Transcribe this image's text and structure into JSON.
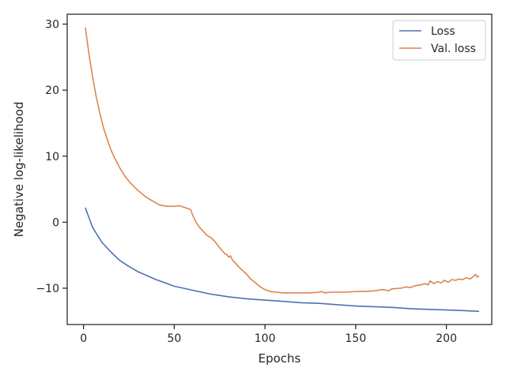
{
  "chart_data": {
    "type": "line",
    "title": "",
    "xlabel": "Epochs",
    "ylabel": "Negative log-likelihood",
    "xlim": [
      -9,
      225
    ],
    "ylim": [
      -15.5,
      31.5
    ],
    "xticks": [
      0,
      50,
      100,
      150,
      200
    ],
    "yticks": [
      -10,
      0,
      10,
      20,
      30
    ],
    "xtick_labels": [
      "0",
      "50",
      "100",
      "150",
      "200"
    ],
    "ytick_labels": [
      "−10",
      "0",
      "10",
      "20",
      "30"
    ],
    "grid": false,
    "legend_position": "top-right",
    "series": [
      {
        "name": "Loss",
        "color": "#4c72b0",
        "x": [
          1,
          5,
          10,
          15,
          20,
          25,
          30,
          35,
          40,
          45,
          50,
          55,
          60,
          65,
          70,
          75,
          80,
          90,
          100,
          110,
          120,
          130,
          140,
          150,
          160,
          170,
          180,
          190,
          200,
          210,
          218
        ],
        "y": [
          2.2,
          -0.8,
          -3.0,
          -4.5,
          -5.8,
          -6.7,
          -7.5,
          -8.1,
          -8.7,
          -9.2,
          -9.7,
          -10.0,
          -10.3,
          -10.6,
          -10.9,
          -11.1,
          -11.3,
          -11.6,
          -11.8,
          -12.0,
          -12.2,
          -12.3,
          -12.5,
          -12.7,
          -12.8,
          -12.9,
          -13.1,
          -13.2,
          -13.3,
          -13.4,
          -13.5
        ]
      },
      {
        "name": "Val. loss",
        "color": "#dd8452",
        "x": [
          1,
          3,
          5,
          7,
          9,
          11,
          13,
          15,
          17,
          20,
          23,
          26,
          30,
          34,
          38,
          42,
          46,
          50,
          53,
          55,
          57,
          59,
          60,
          62,
          64,
          66,
          68,
          70,
          72,
          74,
          76,
          78,
          79,
          80,
          81,
          82,
          84,
          86,
          88,
          90,
          92,
          94,
          96,
          98,
          100,
          103,
          106,
          110,
          115,
          120,
          125,
          130,
          131,
          133,
          136,
          140,
          145,
          150,
          155,
          160,
          165,
          168,
          170,
          175,
          178,
          180,
          183,
          186,
          188,
          190,
          191,
          193,
          195,
          197,
          199,
          201,
          203,
          205,
          207,
          209,
          211,
          213,
          215,
          216,
          217,
          218
        ],
        "y": [
          29.5,
          25.5,
          22.0,
          19.0,
          16.5,
          14.3,
          12.6,
          11.0,
          9.8,
          8.2,
          6.9,
          5.9,
          4.8,
          3.9,
          3.2,
          2.6,
          2.4,
          2.4,
          2.5,
          2.3,
          2.1,
          1.9,
          1.2,
          0.0,
          -0.8,
          -1.4,
          -2.0,
          -2.3,
          -2.8,
          -3.5,
          -4.2,
          -4.8,
          -4.9,
          -5.3,
          -5.1,
          -5.7,
          -6.3,
          -6.9,
          -7.4,
          -7.9,
          -8.6,
          -9.0,
          -9.5,
          -9.9,
          -10.2,
          -10.5,
          -10.6,
          -10.7,
          -10.7,
          -10.7,
          -10.7,
          -10.6,
          -10.5,
          -10.7,
          -10.6,
          -10.6,
          -10.6,
          -10.5,
          -10.5,
          -10.4,
          -10.2,
          -10.4,
          -10.1,
          -10.0,
          -9.8,
          -9.9,
          -9.6,
          -9.5,
          -9.3,
          -9.5,
          -8.9,
          -9.3,
          -9.0,
          -9.2,
          -8.8,
          -9.1,
          -8.7,
          -8.8,
          -8.6,
          -8.7,
          -8.4,
          -8.6,
          -8.2,
          -7.9,
          -8.3,
          -8.1
        ]
      }
    ]
  }
}
